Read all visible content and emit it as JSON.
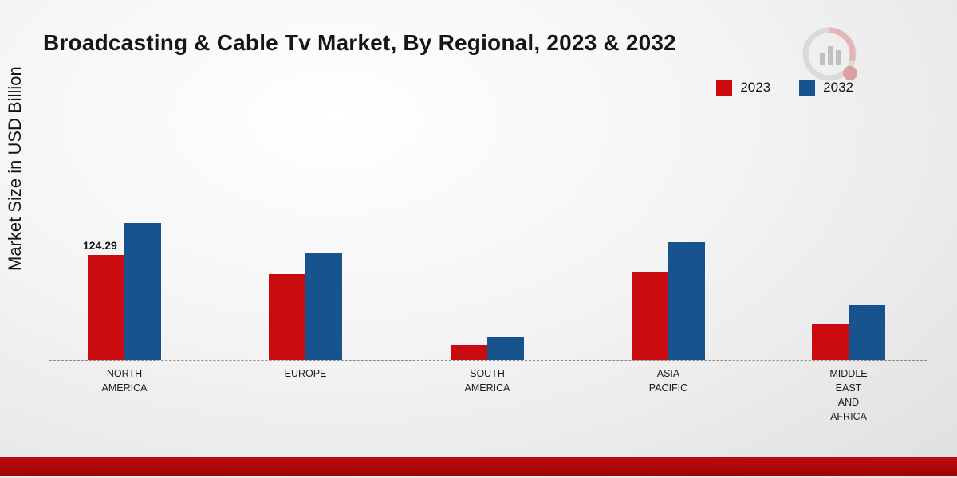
{
  "title": "Broadcasting & Cable Tv Market, By Regional, 2023 & 2032",
  "ylabel": "Market Size in USD Billion",
  "legend": [
    {
      "label": "2023",
      "color": "#c90b0d"
    },
    {
      "label": "2032",
      "color": "#17538d"
    }
  ],
  "colors": {
    "series_2023": "#c90b0d",
    "series_2032": "#17538d",
    "bottom_band": "#ae0709",
    "baseline": "#8a8a8a"
  },
  "chart_data": {
    "type": "bar",
    "title": "Broadcasting & Cable Tv Market, By Regional, 2023 & 2032",
    "xlabel": "",
    "ylabel": "Market Size in USD Billion",
    "categories": [
      "NORTH AMERICA",
      "EUROPE",
      "SOUTH AMERICA",
      "ASIA PACIFIC",
      "MIDDLE EAST AND AFRICA"
    ],
    "category_label_lines": [
      [
        "NORTH",
        "AMERICA"
      ],
      [
        "EUROPE"
      ],
      [
        "SOUTH",
        "AMERICA"
      ],
      [
        "ASIA",
        "PACIFIC"
      ],
      [
        "MIDDLE",
        "EAST",
        "AND",
        "AFRICA"
      ]
    ],
    "series": [
      {
        "name": "2023",
        "color": "#c90b0d",
        "values": [
          124.29,
          102,
          18,
          105,
          42
        ]
      },
      {
        "name": "2032",
        "color": "#17538d",
        "values": [
          162,
          127,
          27,
          140,
          65
        ]
      }
    ],
    "annotations": [
      {
        "series_index": 0,
        "category_index": 0,
        "text": "124.29"
      }
    ],
    "ylim": [
      0,
      180
    ],
    "grid": false,
    "baseline_style": "dashed",
    "legend_position": "top-right"
  }
}
